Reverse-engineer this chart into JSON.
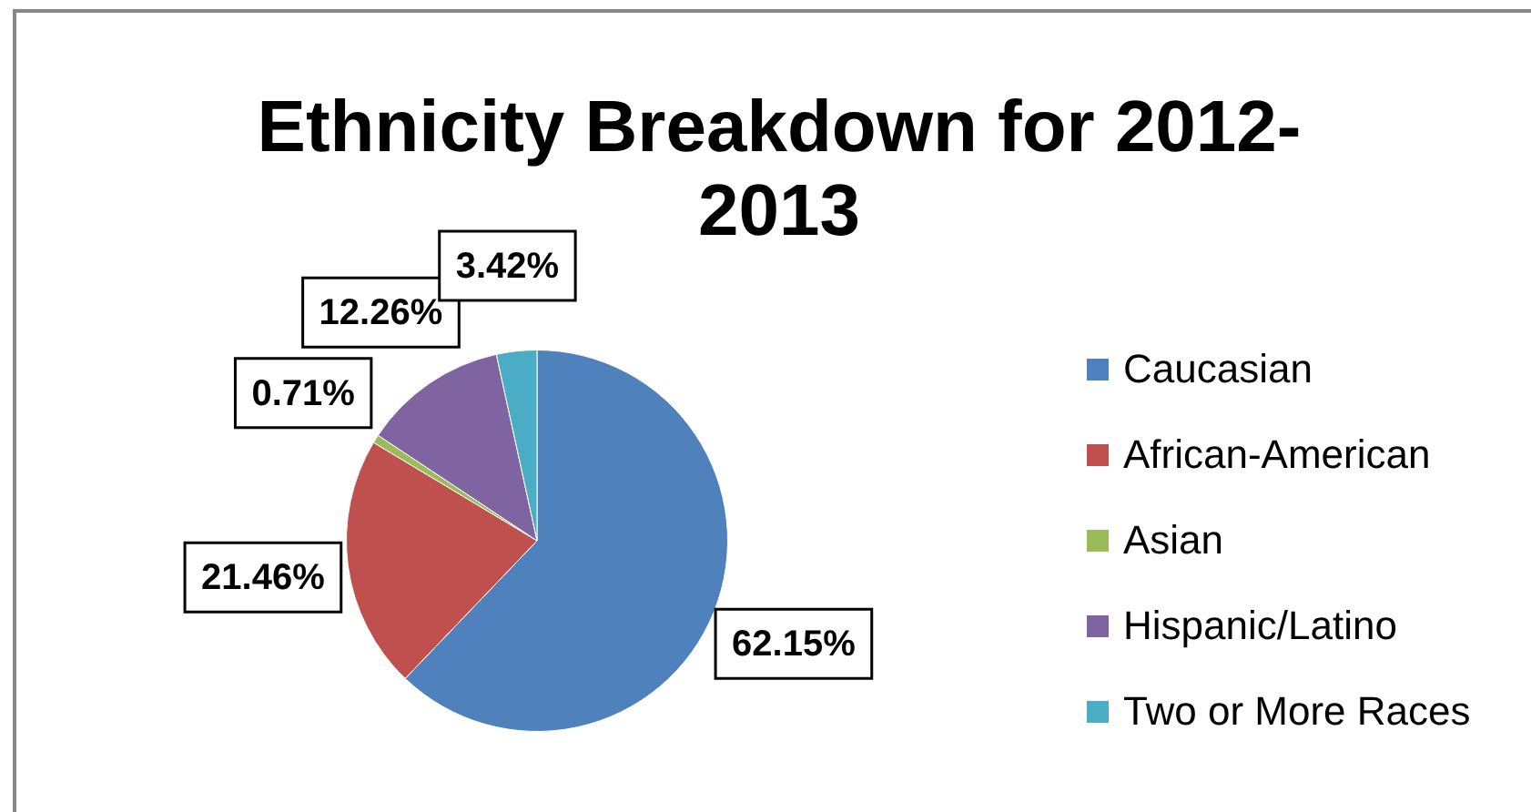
{
  "chart_data": {
    "type": "pie",
    "title": "Ethnicity Breakdown for 2012-2013",
    "categories": [
      "Caucasian",
      "African-American",
      "Asian",
      "Hispanic/Latino",
      "Two or More Races"
    ],
    "values": [
      62.15,
      21.46,
      0.71,
      12.26,
      3.42
    ],
    "colors": [
      "#4f81bd",
      "#c0504d",
      "#9bbb59",
      "#8064a2",
      "#4bacc6"
    ],
    "value_labels": [
      "62.15%",
      "21.46%",
      "0.71%",
      "12.26%",
      "3.42%"
    ],
    "legend": "right"
  }
}
